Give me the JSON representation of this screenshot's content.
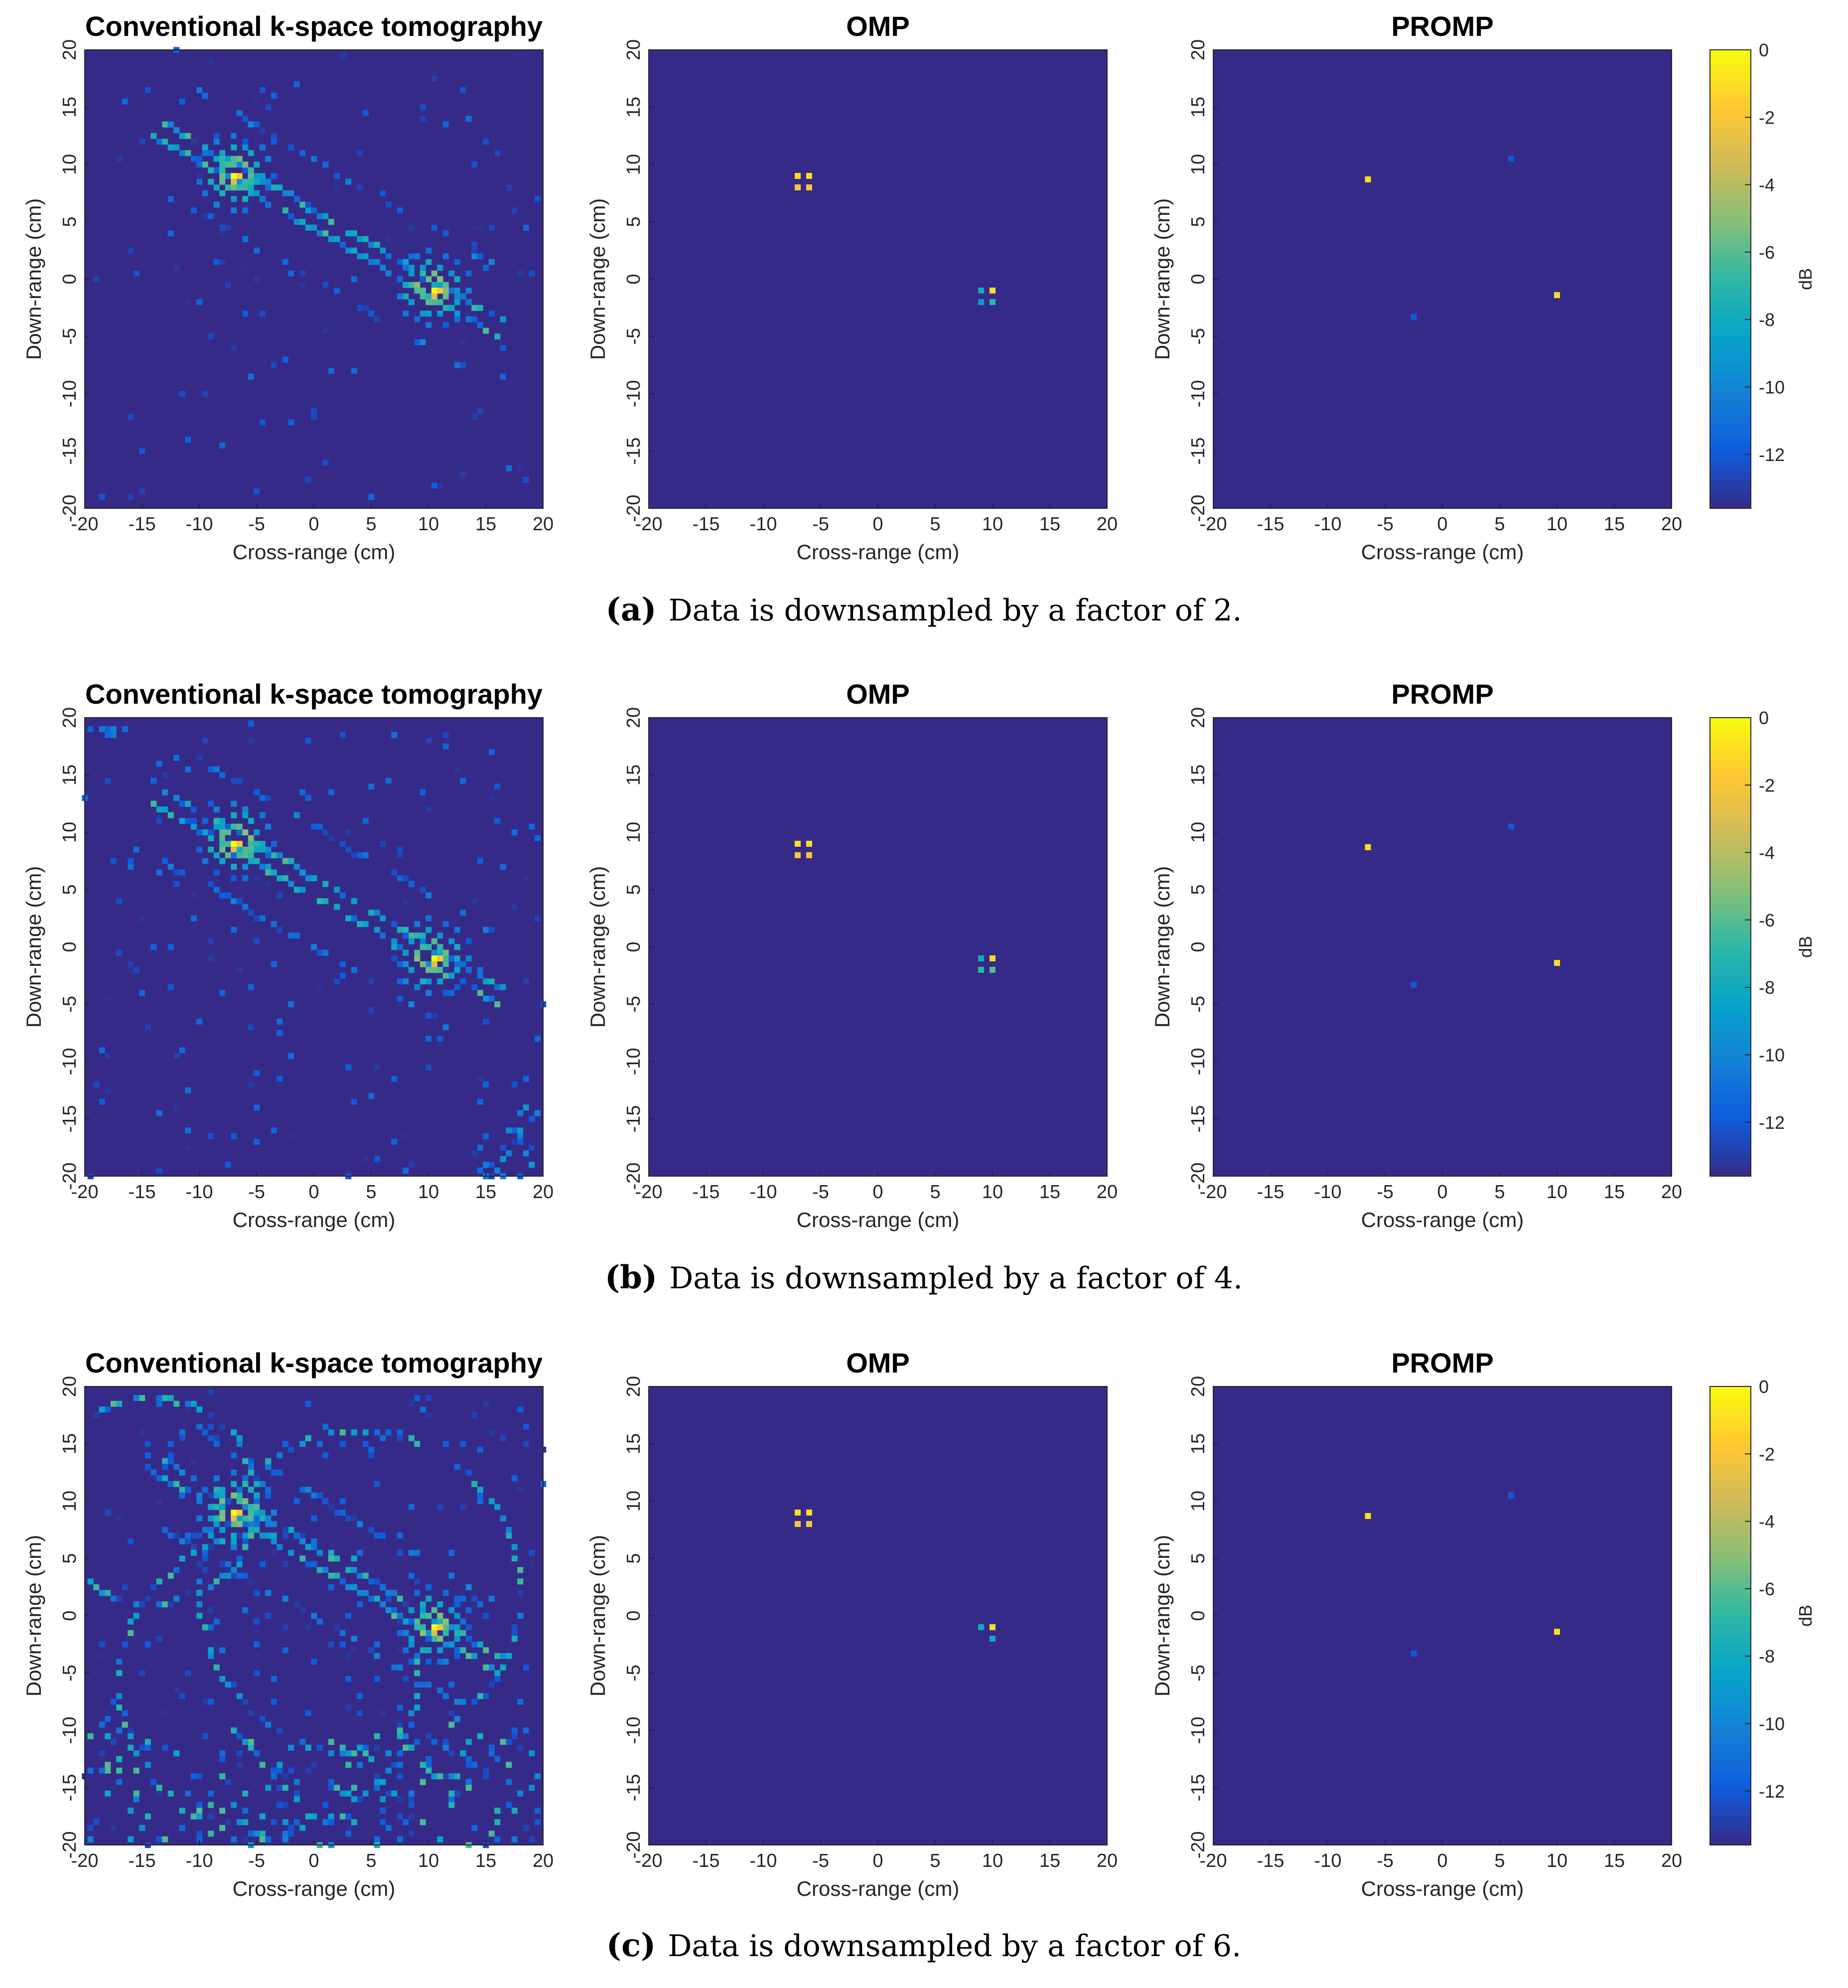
{
  "background_color": "#352a87",
  "colormap": [
    "#352a87",
    "#0f5cdd",
    "#1481d6",
    "#06a4ca",
    "#2eb7a4",
    "#87bf77",
    "#d1bb59",
    "#fec832",
    "#f9fb0e"
  ],
  "chart_data": [
    {
      "row": "a",
      "caption_letter": "(a)",
      "caption": "Data is downsampled by a factor of 2.",
      "panels": [
        {
          "type": "heatmap",
          "title": "Conventional k-space tomography",
          "xlabel": "Cross-range (cm)",
          "ylabel": "Down-range (cm)",
          "xlim": [
            -20,
            20
          ],
          "ylim": [
            -20,
            20
          ],
          "xticks": [
            -20,
            -15,
            -10,
            -5,
            0,
            5,
            10,
            15,
            20
          ],
          "yticks": [
            -20,
            -15,
            -10,
            -5,
            0,
            5,
            10,
            15,
            20
          ],
          "targets": [
            {
              "x": -6.8,
              "y": 9.2
            },
            {
              "x": 10.4,
              "y": -0.9
            }
          ],
          "clutter": "low"
        },
        {
          "type": "heatmap",
          "title": "OMP",
          "xlabel": "Cross-range (cm)",
          "ylabel": "Down-range (cm)",
          "xlim": [
            -20,
            20
          ],
          "ylim": [
            -20,
            20
          ],
          "xticks": [
            -20,
            -15,
            -10,
            -5,
            0,
            5,
            10,
            15,
            20
          ],
          "yticks": [
            -20,
            -15,
            -10,
            -5,
            0,
            5,
            10,
            15,
            20
          ],
          "points": [
            {
              "x": -7.0,
              "y": 9.0,
              "db": -1
            },
            {
              "x": -6.0,
              "y": 9.0,
              "db": -1
            },
            {
              "x": -7.0,
              "y": 8.0,
              "db": -2
            },
            {
              "x": -6.0,
              "y": 8.0,
              "db": -2
            },
            {
              "x": 9.0,
              "y": -1.0,
              "db": -8
            },
            {
              "x": 10.0,
              "y": -1.0,
              "db": -1
            },
            {
              "x": 9.0,
              "y": -2.0,
              "db": -9
            },
            {
              "x": 10.0,
              "y": -2.0,
              "db": -7
            }
          ]
        },
        {
          "type": "heatmap",
          "title": "PROMP",
          "xlabel": "Cross-range (cm)",
          "ylabel": "Down-range (cm)",
          "xlim": [
            -20,
            20
          ],
          "ylim": [
            -20,
            20
          ],
          "xticks": [
            -20,
            -15,
            -10,
            -5,
            0,
            5,
            10,
            15,
            20
          ],
          "yticks": [
            -20,
            -15,
            -10,
            -5,
            0,
            5,
            10,
            15,
            20
          ],
          "points": [
            {
              "x": -6.5,
              "y": 8.7,
              "db": -1
            },
            {
              "x": 10.0,
              "y": -1.4,
              "db": -1
            },
            {
              "x": 6.0,
              "y": 10.5,
              "db": -12
            },
            {
              "x": -2.5,
              "y": -3.3,
              "db": -12
            }
          ]
        }
      ],
      "colorbar": {
        "label": "dB",
        "ticks": [
          0,
          -2,
          -4,
          -6,
          -8,
          -10,
          -12
        ],
        "range": [
          -13.6,
          0
        ]
      }
    },
    {
      "row": "b",
      "caption_letter": "(b)",
      "caption": "Data is downsampled by a factor of 4.",
      "panels": [
        {
          "type": "heatmap",
          "title": "Conventional k-space tomography",
          "xlabel": "Cross-range (cm)",
          "ylabel": "Down-range (cm)",
          "xlim": [
            -20,
            20
          ],
          "ylim": [
            -20,
            20
          ],
          "xticks": [
            -20,
            -15,
            -10,
            -5,
            0,
            5,
            10,
            15,
            20
          ],
          "yticks": [
            -20,
            -15,
            -10,
            -5,
            0,
            5,
            10,
            15,
            20
          ],
          "targets": [
            {
              "x": -6.8,
              "y": 9.2
            },
            {
              "x": 10.4,
              "y": -0.9
            }
          ],
          "clutter": "medium"
        },
        {
          "type": "heatmap",
          "title": "OMP",
          "xlabel": "Cross-range (cm)",
          "ylabel": "Down-range (cm)",
          "xlim": [
            -20,
            20
          ],
          "ylim": [
            -20,
            20
          ],
          "xticks": [
            -20,
            -15,
            -10,
            -5,
            0,
            5,
            10,
            15,
            20
          ],
          "yticks": [
            -20,
            -15,
            -10,
            -5,
            0,
            5,
            10,
            15,
            20
          ],
          "points": [
            {
              "x": -7.0,
              "y": 9.0,
              "db": -1
            },
            {
              "x": -6.0,
              "y": 9.0,
              "db": -1
            },
            {
              "x": -7.0,
              "y": 8.0,
              "db": -2
            },
            {
              "x": -6.0,
              "y": 8.0,
              "db": -2
            },
            {
              "x": 9.0,
              "y": -1.0,
              "db": -8
            },
            {
              "x": 10.0,
              "y": -1.0,
              "db": -1
            },
            {
              "x": 9.0,
              "y": -2.0,
              "db": -7
            },
            {
              "x": 10.0,
              "y": -2.0,
              "db": -6
            }
          ]
        },
        {
          "type": "heatmap",
          "title": "PROMP",
          "xlabel": "Cross-range (cm)",
          "ylabel": "Down-range (cm)",
          "xlim": [
            -20,
            20
          ],
          "ylim": [
            -20,
            20
          ],
          "xticks": [
            -20,
            -15,
            -10,
            -5,
            0,
            5,
            10,
            15,
            20
          ],
          "yticks": [
            -20,
            -15,
            -10,
            -5,
            0,
            5,
            10,
            15,
            20
          ],
          "points": [
            {
              "x": -6.5,
              "y": 8.7,
              "db": -1
            },
            {
              "x": 10.0,
              "y": -1.4,
              "db": -1
            },
            {
              "x": 6.0,
              "y": 10.5,
              "db": -12
            },
            {
              "x": -2.5,
              "y": -3.3,
              "db": -12
            }
          ]
        }
      ],
      "colorbar": {
        "label": "dB",
        "ticks": [
          0,
          -2,
          -4,
          -6,
          -8,
          -10,
          -12
        ],
        "range": [
          -13.6,
          0
        ]
      }
    },
    {
      "row": "c",
      "caption_letter": "(c)",
      "caption": "Data is downsampled by a factor of 6.",
      "panels": [
        {
          "type": "heatmap",
          "title": "Conventional k-space tomography",
          "xlabel": "Cross-range (cm)",
          "ylabel": "Down-range (cm)",
          "xlim": [
            -20,
            20
          ],
          "ylim": [
            -20,
            20
          ],
          "xticks": [
            -20,
            -15,
            -10,
            -5,
            0,
            5,
            10,
            15,
            20
          ],
          "yticks": [
            -20,
            -15,
            -10,
            -5,
            0,
            5,
            10,
            15,
            20
          ],
          "targets": [
            {
              "x": -6.8,
              "y": 9.2
            },
            {
              "x": 10.4,
              "y": -0.9
            }
          ],
          "clutter": "high"
        },
        {
          "type": "heatmap",
          "title": "OMP",
          "xlabel": "Cross-range (cm)",
          "ylabel": "Down-range (cm)",
          "xlim": [
            -20,
            20
          ],
          "ylim": [
            -20,
            20
          ],
          "xticks": [
            -20,
            -15,
            -10,
            -5,
            0,
            5,
            10,
            15,
            20
          ],
          "yticks": [
            -20,
            -15,
            -10,
            -5,
            0,
            5,
            10,
            15,
            20
          ],
          "points": [
            {
              "x": -7.0,
              "y": 9.0,
              "db": -1
            },
            {
              "x": -6.0,
              "y": 9.0,
              "db": -1
            },
            {
              "x": -7.0,
              "y": 8.0,
              "db": -2
            },
            {
              "x": -6.0,
              "y": 8.0,
              "db": -2
            },
            {
              "x": 9.0,
              "y": -1.0,
              "db": -8
            },
            {
              "x": 10.0,
              "y": -1.0,
              "db": -1
            },
            {
              "x": 10.0,
              "y": -2.0,
              "db": -8
            }
          ]
        },
        {
          "type": "heatmap",
          "title": "PROMP",
          "xlabel": "Cross-range (cm)",
          "ylabel": "Down-range (cm)",
          "xlim": [
            -20,
            20
          ],
          "ylim": [
            -20,
            20
          ],
          "xticks": [
            -20,
            -15,
            -10,
            -5,
            0,
            5,
            10,
            15,
            20
          ],
          "yticks": [
            -20,
            -15,
            -10,
            -5,
            0,
            5,
            10,
            15,
            20
          ],
          "points": [
            {
              "x": -6.5,
              "y": 8.7,
              "db": -1
            },
            {
              "x": 10.0,
              "y": -1.4,
              "db": -1
            },
            {
              "x": 6.0,
              "y": 10.5,
              "db": -12
            },
            {
              "x": -2.5,
              "y": -3.3,
              "db": -12
            }
          ]
        }
      ],
      "colorbar": {
        "label": "dB",
        "ticks": [
          0,
          -2,
          -4,
          -6,
          -8,
          -10,
          -12
        ],
        "range": [
          -13.6,
          0
        ]
      }
    }
  ]
}
